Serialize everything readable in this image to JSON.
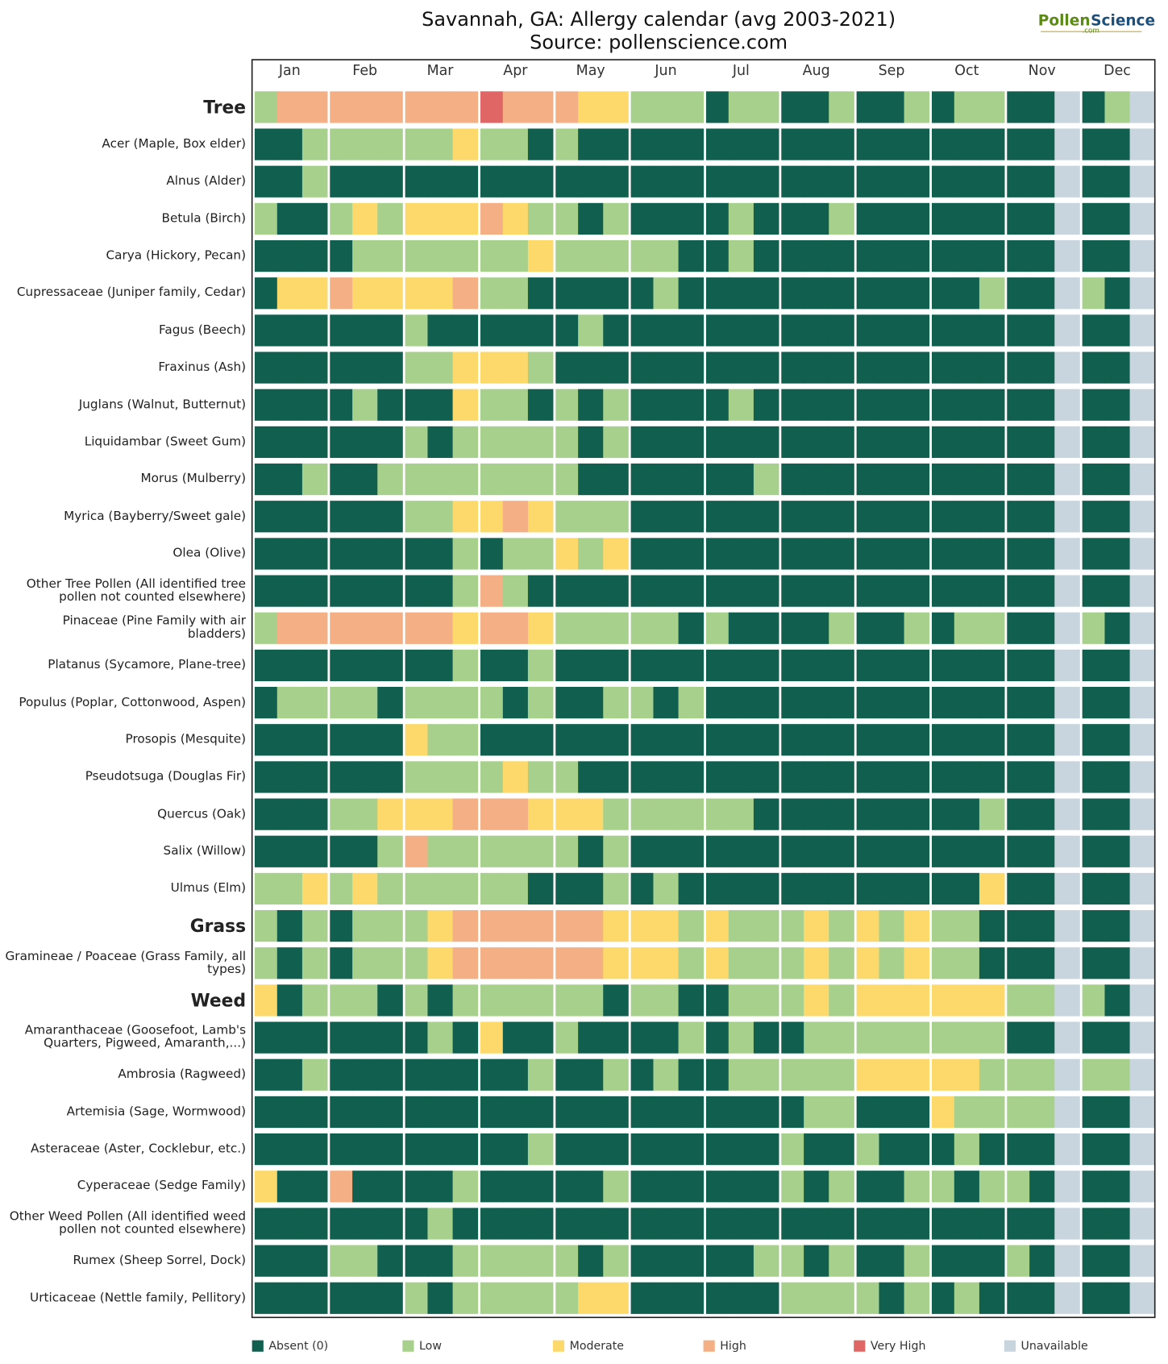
{
  "chart_data": {
    "type": "heatmap",
    "title": "Savannah, GA: Allergy calendar (avg 2003-2021)",
    "subtitle": "Source: pollenscience.com",
    "logo": {
      "part1": "Pollen",
      "part2": "Science",
      "sub": ".com"
    },
    "categories": [
      "Jan",
      "Feb",
      "Mar",
      "Apr",
      "May",
      "Jun",
      "Jul",
      "Aug",
      "Sep",
      "Oct",
      "Nov",
      "Dec"
    ],
    "levels": [
      {
        "name": "Absent (0)",
        "color": "#11604f"
      },
      {
        "name": "Low",
        "color": "#a8d08d"
      },
      {
        "name": "Moderate",
        "color": "#fdd86a"
      },
      {
        "name": "High",
        "color": "#f4af84"
      },
      {
        "name": "Very High",
        "color": "#e06666"
      },
      {
        "name": "Unavailable",
        "color": "#c8d5de"
      }
    ],
    "rows": [
      {
        "label": "Tree",
        "bold": true,
        "values": [
          1,
          3,
          3,
          3,
          3,
          3,
          3,
          3,
          3,
          4,
          3,
          3,
          3,
          2,
          2,
          1,
          1,
          1,
          0,
          1,
          1,
          0,
          0,
          1,
          0,
          0,
          1,
          0,
          1,
          1,
          0,
          0,
          5,
          0,
          1,
          5
        ]
      },
      {
        "label": "Acer (Maple, Box elder)",
        "values": [
          0,
          0,
          1,
          1,
          1,
          1,
          1,
          1,
          2,
          1,
          1,
          0,
          1,
          0,
          0,
          0,
          0,
          0,
          0,
          0,
          0,
          0,
          0,
          0,
          0,
          0,
          0,
          0,
          0,
          0,
          0,
          0,
          5,
          0,
          0,
          5
        ]
      },
      {
        "label": "Alnus (Alder)",
        "values": [
          0,
          0,
          1,
          0,
          0,
          0,
          0,
          0,
          0,
          0,
          0,
          0,
          0,
          0,
          0,
          0,
          0,
          0,
          0,
          0,
          0,
          0,
          0,
          0,
          0,
          0,
          0,
          0,
          0,
          0,
          0,
          0,
          5,
          0,
          0,
          5
        ]
      },
      {
        "label": "Betula (Birch)",
        "values": [
          1,
          0,
          0,
          1,
          2,
          1,
          2,
          2,
          2,
          3,
          2,
          1,
          1,
          0,
          1,
          0,
          0,
          0,
          0,
          1,
          0,
          0,
          0,
          1,
          0,
          0,
          0,
          0,
          0,
          0,
          0,
          0,
          5,
          0,
          0,
          5
        ]
      },
      {
        "label": "Carya (Hickory, Pecan)",
        "values": [
          0,
          0,
          0,
          0,
          1,
          1,
          1,
          1,
          1,
          1,
          1,
          2,
          1,
          1,
          1,
          1,
          1,
          0,
          0,
          1,
          0,
          0,
          0,
          0,
          0,
          0,
          0,
          0,
          0,
          0,
          0,
          0,
          5,
          0,
          0,
          5
        ]
      },
      {
        "label": "Cupressaceae (Juniper family, Cedar)",
        "values": [
          0,
          2,
          2,
          3,
          2,
          2,
          2,
          2,
          3,
          1,
          1,
          0,
          0,
          0,
          0,
          0,
          1,
          0,
          0,
          0,
          0,
          0,
          0,
          0,
          0,
          0,
          0,
          0,
          0,
          1,
          0,
          0,
          5,
          1,
          0,
          5
        ]
      },
      {
        "label": "Fagus (Beech)",
        "values": [
          0,
          0,
          0,
          0,
          0,
          0,
          1,
          0,
          0,
          0,
          0,
          0,
          0,
          1,
          0,
          0,
          0,
          0,
          0,
          0,
          0,
          0,
          0,
          0,
          0,
          0,
          0,
          0,
          0,
          0,
          0,
          0,
          5,
          0,
          0,
          5
        ]
      },
      {
        "label": "Fraxinus (Ash)",
        "values": [
          0,
          0,
          0,
          0,
          0,
          0,
          1,
          1,
          2,
          2,
          2,
          1,
          0,
          0,
          0,
          0,
          0,
          0,
          0,
          0,
          0,
          0,
          0,
          0,
          0,
          0,
          0,
          0,
          0,
          0,
          0,
          0,
          5,
          0,
          0,
          5
        ]
      },
      {
        "label": "Juglans (Walnut, Butternut)",
        "values": [
          0,
          0,
          0,
          0,
          1,
          0,
          0,
          0,
          2,
          1,
          1,
          0,
          1,
          0,
          1,
          0,
          0,
          0,
          0,
          1,
          0,
          0,
          0,
          0,
          0,
          0,
          0,
          0,
          0,
          0,
          0,
          0,
          5,
          0,
          0,
          5
        ]
      },
      {
        "label": "Liquidambar (Sweet Gum)",
        "values": [
          0,
          0,
          0,
          0,
          0,
          0,
          1,
          0,
          1,
          1,
          1,
          1,
          1,
          0,
          1,
          0,
          0,
          0,
          0,
          0,
          0,
          0,
          0,
          0,
          0,
          0,
          0,
          0,
          0,
          0,
          0,
          0,
          5,
          0,
          0,
          5
        ]
      },
      {
        "label": "Morus (Mulberry)",
        "values": [
          0,
          0,
          1,
          0,
          0,
          1,
          1,
          1,
          1,
          1,
          1,
          1,
          1,
          0,
          0,
          0,
          0,
          0,
          0,
          0,
          1,
          0,
          0,
          0,
          0,
          0,
          0,
          0,
          0,
          0,
          0,
          0,
          5,
          0,
          0,
          5
        ]
      },
      {
        "label": "Myrica (Bayberry/Sweet gale)",
        "values": [
          0,
          0,
          0,
          0,
          0,
          0,
          1,
          1,
          2,
          2,
          3,
          2,
          1,
          1,
          1,
          0,
          0,
          0,
          0,
          0,
          0,
          0,
          0,
          0,
          0,
          0,
          0,
          0,
          0,
          0,
          0,
          0,
          5,
          0,
          0,
          5
        ]
      },
      {
        "label": "Olea (Olive)",
        "values": [
          0,
          0,
          0,
          0,
          0,
          0,
          0,
          0,
          1,
          0,
          1,
          1,
          2,
          1,
          2,
          0,
          0,
          0,
          0,
          0,
          0,
          0,
          0,
          0,
          0,
          0,
          0,
          0,
          0,
          0,
          0,
          0,
          5,
          0,
          0,
          5
        ]
      },
      {
        "label": "Other Tree Pollen (All identified tree pollen not counted elsewhere)",
        "values": [
          0,
          0,
          0,
          0,
          0,
          0,
          0,
          0,
          1,
          3,
          1,
          0,
          0,
          0,
          0,
          0,
          0,
          0,
          0,
          0,
          0,
          0,
          0,
          0,
          0,
          0,
          0,
          0,
          0,
          0,
          0,
          0,
          5,
          0,
          0,
          5
        ]
      },
      {
        "label": "Pinaceae (Pine Family with air bladders)",
        "values": [
          1,
          3,
          3,
          3,
          3,
          3,
          3,
          3,
          2,
          3,
          3,
          2,
          1,
          1,
          1,
          1,
          1,
          0,
          1,
          0,
          0,
          0,
          0,
          1,
          0,
          0,
          1,
          0,
          1,
          1,
          0,
          0,
          5,
          1,
          0,
          5
        ]
      },
      {
        "label": "Platanus (Sycamore, Plane-tree)",
        "values": [
          0,
          0,
          0,
          0,
          0,
          0,
          0,
          0,
          1,
          0,
          0,
          1,
          0,
          0,
          0,
          0,
          0,
          0,
          0,
          0,
          0,
          0,
          0,
          0,
          0,
          0,
          0,
          0,
          0,
          0,
          0,
          0,
          5,
          0,
          0,
          5
        ]
      },
      {
        "label": "Populus (Poplar, Cottonwood, Aspen)",
        "values": [
          0,
          1,
          1,
          1,
          1,
          0,
          1,
          1,
          1,
          1,
          0,
          1,
          0,
          0,
          1,
          1,
          0,
          1,
          0,
          0,
          0,
          0,
          0,
          0,
          0,
          0,
          0,
          0,
          0,
          0,
          0,
          0,
          5,
          0,
          0,
          5
        ]
      },
      {
        "label": "Prosopis (Mesquite)",
        "values": [
          0,
          0,
          0,
          0,
          0,
          0,
          2,
          1,
          1,
          0,
          0,
          0,
          0,
          0,
          0,
          0,
          0,
          0,
          0,
          0,
          0,
          0,
          0,
          0,
          0,
          0,
          0,
          0,
          0,
          0,
          0,
          0,
          5,
          0,
          0,
          5
        ]
      },
      {
        "label": "Pseudotsuga (Douglas Fir)",
        "values": [
          0,
          0,
          0,
          0,
          0,
          0,
          1,
          1,
          1,
          1,
          2,
          1,
          1,
          0,
          0,
          0,
          0,
          0,
          0,
          0,
          0,
          0,
          0,
          0,
          0,
          0,
          0,
          0,
          0,
          0,
          0,
          0,
          5,
          0,
          0,
          5
        ]
      },
      {
        "label": "Quercus (Oak)",
        "values": [
          0,
          0,
          0,
          1,
          1,
          2,
          2,
          2,
          3,
          3,
          3,
          2,
          2,
          2,
          1,
          1,
          1,
          1,
          1,
          1,
          0,
          0,
          0,
          0,
          0,
          0,
          0,
          0,
          0,
          1,
          0,
          0,
          5,
          0,
          0,
          5
        ]
      },
      {
        "label": "Salix (Willow)",
        "values": [
          0,
          0,
          0,
          0,
          0,
          1,
          3,
          1,
          1,
          1,
          1,
          1,
          1,
          0,
          1,
          0,
          0,
          0,
          0,
          0,
          0,
          0,
          0,
          0,
          0,
          0,
          0,
          0,
          0,
          0,
          0,
          0,
          5,
          0,
          0,
          5
        ]
      },
      {
        "label": "Ulmus (Elm)",
        "values": [
          1,
          1,
          2,
          1,
          2,
          1,
          1,
          1,
          1,
          1,
          1,
          0,
          0,
          0,
          1,
          0,
          1,
          0,
          0,
          0,
          0,
          0,
          0,
          0,
          0,
          0,
          0,
          0,
          0,
          2,
          0,
          0,
          5,
          0,
          0,
          5
        ]
      },
      {
        "label": "Grass",
        "bold": true,
        "values": [
          1,
          0,
          1,
          0,
          1,
          1,
          1,
          2,
          3,
          3,
          3,
          3,
          3,
          3,
          2,
          2,
          2,
          1,
          2,
          1,
          1,
          1,
          2,
          1,
          2,
          1,
          2,
          1,
          1,
          0,
          0,
          0,
          5,
          0,
          0,
          5
        ]
      },
      {
        "label": "Gramineae / Poaceae (Grass Family, all types)",
        "values": [
          1,
          0,
          1,
          0,
          1,
          1,
          1,
          2,
          3,
          3,
          3,
          3,
          3,
          3,
          2,
          2,
          2,
          1,
          2,
          1,
          1,
          1,
          2,
          1,
          2,
          1,
          2,
          1,
          1,
          0,
          0,
          0,
          5,
          0,
          0,
          5
        ]
      },
      {
        "label": "Weed",
        "bold": true,
        "values": [
          2,
          0,
          1,
          1,
          1,
          0,
          1,
          0,
          1,
          1,
          1,
          1,
          1,
          1,
          0,
          1,
          1,
          0,
          0,
          1,
          1,
          1,
          2,
          1,
          2,
          2,
          2,
          2,
          2,
          2,
          1,
          1,
          5,
          1,
          0,
          5
        ]
      },
      {
        "label": "Amaranthaceae (Goosefoot, Lamb's Quarters, Pigweed, Amaranth,...)",
        "values": [
          0,
          0,
          0,
          0,
          0,
          0,
          0,
          1,
          0,
          2,
          0,
          0,
          1,
          0,
          0,
          0,
          0,
          1,
          0,
          1,
          0,
          0,
          1,
          1,
          1,
          1,
          1,
          1,
          1,
          1,
          0,
          0,
          5,
          0,
          0,
          5
        ]
      },
      {
        "label": "Ambrosia (Ragweed)",
        "values": [
          0,
          0,
          1,
          0,
          0,
          0,
          0,
          0,
          0,
          0,
          0,
          1,
          0,
          0,
          1,
          0,
          1,
          0,
          0,
          1,
          1,
          1,
          1,
          1,
          2,
          2,
          2,
          2,
          2,
          1,
          1,
          1,
          5,
          1,
          1,
          5
        ]
      },
      {
        "label": "Artemisia (Sage, Wormwood)",
        "values": [
          0,
          0,
          0,
          0,
          0,
          0,
          0,
          0,
          0,
          0,
          0,
          0,
          0,
          0,
          0,
          0,
          0,
          0,
          0,
          0,
          0,
          0,
          1,
          1,
          0,
          0,
          0,
          2,
          1,
          1,
          1,
          1,
          5,
          0,
          0,
          5
        ]
      },
      {
        "label": "Asteraceae (Aster, Cocklebur, etc.)",
        "values": [
          0,
          0,
          0,
          0,
          0,
          0,
          0,
          0,
          0,
          0,
          0,
          1,
          0,
          0,
          0,
          0,
          0,
          0,
          0,
          0,
          0,
          1,
          0,
          0,
          1,
          0,
          0,
          0,
          1,
          0,
          0,
          0,
          5,
          0,
          0,
          5
        ]
      },
      {
        "label": "Cyperaceae (Sedge Family)",
        "values": [
          2,
          0,
          0,
          3,
          0,
          0,
          0,
          0,
          1,
          0,
          0,
          0,
          0,
          0,
          1,
          0,
          0,
          0,
          0,
          0,
          0,
          1,
          0,
          1,
          0,
          0,
          1,
          1,
          0,
          1,
          1,
          0,
          5,
          0,
          0,
          5
        ]
      },
      {
        "label": "Other Weed Pollen (All identified weed pollen not counted elsewhere)",
        "values": [
          0,
          0,
          0,
          0,
          0,
          0,
          0,
          1,
          0,
          0,
          0,
          0,
          0,
          0,
          0,
          0,
          0,
          0,
          0,
          0,
          0,
          0,
          0,
          0,
          0,
          0,
          0,
          0,
          0,
          0,
          0,
          0,
          5,
          0,
          0,
          5
        ]
      },
      {
        "label": "Rumex (Sheep Sorrel, Dock)",
        "values": [
          0,
          0,
          0,
          1,
          1,
          0,
          0,
          0,
          1,
          1,
          1,
          1,
          1,
          0,
          1,
          0,
          0,
          0,
          0,
          0,
          1,
          1,
          0,
          1,
          0,
          0,
          1,
          0,
          0,
          0,
          1,
          0,
          5,
          0,
          0,
          5
        ]
      },
      {
        "label": "Urticaceae (Nettle family, Pellitory)",
        "values": [
          0,
          0,
          0,
          0,
          0,
          0,
          1,
          0,
          1,
          1,
          1,
          1,
          1,
          2,
          2,
          0,
          0,
          0,
          0,
          0,
          0,
          1,
          1,
          1,
          1,
          0,
          1,
          0,
          1,
          0,
          0,
          0,
          5,
          0,
          0,
          5
        ]
      }
    ]
  }
}
